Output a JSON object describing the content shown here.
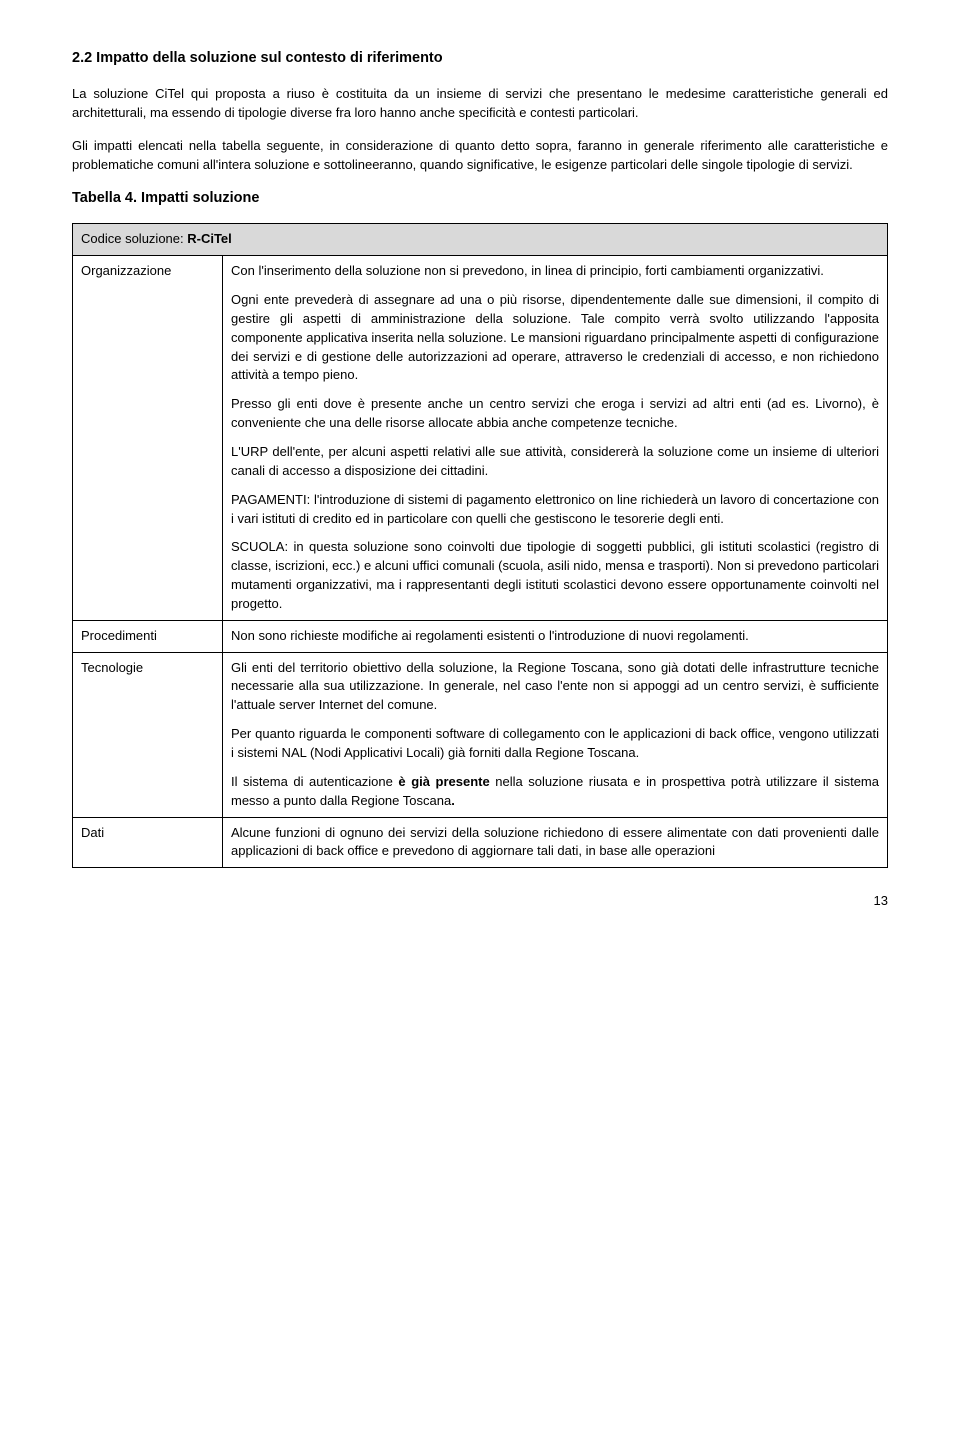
{
  "heading": "2.2 Impatto della soluzione sul contesto di riferimento",
  "p1": "La soluzione CiTel qui proposta a riuso è costituita da un insieme di servizi che presentano le medesime caratteristiche generali ed architetturali, ma essendo di tipologie diverse fra loro hanno anche specificità e contesti particolari.",
  "p2": "Gli impatti elencati nella tabella seguente, in considerazione di quanto detto sopra, faranno in generale riferimento alle caratteristiche e problematiche comuni all'intera soluzione e sottolineeranno, quando significative, le esigenze particolari delle singole tipologie di servizi.",
  "tableLabel": "Tabella 4. Impatti soluzione",
  "hdrPrefix": "Codice soluzione: ",
  "hdrCode": "R-CiTel",
  "rows": {
    "org": {
      "label": "Organizzazione",
      "p1": "Con l'inserimento della soluzione non si prevedono, in linea di principio, forti cambiamenti organizzativi.",
      "p2": "Ogni ente prevederà di assegnare ad una o più risorse, dipendentemente dalle sue dimensioni, il compito di gestire gli aspetti di amministrazione della soluzione. Tale compito verrà svolto utilizzando l'apposita componente applicativa inserita nella soluzione. Le mansioni riguardano principalmente aspetti di configurazione dei servizi e di gestione delle autorizzazioni ad operare, attraverso le credenziali di accesso, e non richiedono attività a tempo pieno.",
      "p3": "Presso gli enti dove è presente anche un centro servizi che eroga i servizi ad altri enti (ad es. Livorno), è conveniente che una delle risorse allocate abbia anche competenze tecniche.",
      "p4": "L'URP dell'ente, per alcuni aspetti relativi alle sue attività, considererà la soluzione come un insieme di ulteriori canali di accesso a disposizione dei cittadini.",
      "p5": "PAGAMENTI: l'introduzione di sistemi di pagamento elettronico on line richiederà un lavoro di concertazione con i vari istituti di credito ed in particolare con quelli che gestiscono le tesorerie degli enti.",
      "p6": "SCUOLA: in questa soluzione sono coinvolti due tipologie di soggetti pubblici, gli istituti scolastici (registro di classe, iscrizioni, ecc.) e alcuni uffici comunali (scuola, asili nido, mensa e trasporti). Non si prevedono particolari mutamenti organizzativi, ma i rappresentanti degli istituti scolastici devono essere opportunamente coinvolti nel progetto."
    },
    "proc": {
      "label": "Procedimenti",
      "p1": "Non sono richieste modifiche ai regolamenti esistenti o l'introduzione di nuovi regolamenti."
    },
    "tecn": {
      "label": "Tecnologie",
      "p1": "Gli enti del territorio obiettivo della soluzione, la Regione Toscana, sono già dotati delle infrastrutture tecniche necessarie alla sua utilizzazione. In generale, nel caso l'ente non si appoggi ad un centro servizi, è sufficiente l'attuale server Internet del comune.",
      "p2": "Per quanto riguarda le componenti software di collegamento con le applicazioni di back office, vengono utilizzati i sistemi NAL (Nodi Applicativi Locali) già forniti dalla Regione Toscana.",
      "p3a": "Il sistema di autenticazione ",
      "p3b": "è già presente",
      "p3c": " nella soluzione riusata e in prospettiva potrà utilizzare il sistema messo a punto dalla Regione Toscana",
      "p3d": "."
    },
    "dati": {
      "label": "Dati",
      "p1": "Alcune funzioni di ognuno dei servizi della soluzione richiedono di essere alimentate con dati provenienti dalle applicazioni di back office e prevedono di aggiornare tali dati, in base alle operazioni"
    }
  },
  "pagenum": "13"
}
